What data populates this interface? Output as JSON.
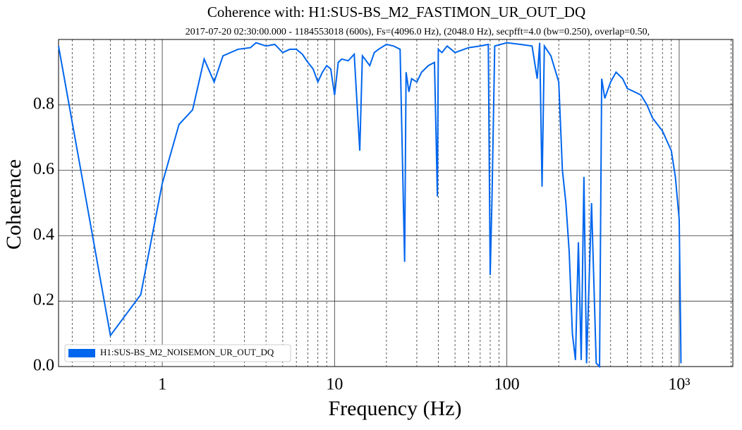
{
  "chart_data": {
    "type": "line",
    "title": "Coherence with: H1:SUS-BS_M2_FASTIMON_UR_OUT_DQ",
    "subtitle": "2017-07-20 02:30:00.000 - 1184553018 (600s), Fs=(4096.0 Hz), (2048.0 Hz), secpfft=4.0 (bw=0.250), overlap=0.50,",
    "xlabel": "Frequency (Hz)",
    "ylabel": "Coherence",
    "xscale": "log",
    "grid": true,
    "legend": "lower left",
    "xlim": [
      0.25,
      2048
    ],
    "ylim": [
      0,
      1
    ],
    "xticks": [
      1,
      10,
      100,
      {
        "value": 1000,
        "label": "10³"
      }
    ],
    "xminorticks": [
      0.3,
      0.4,
      0.5,
      0.6,
      0.7,
      0.8,
      0.9,
      2,
      3,
      4,
      5,
      6,
      7,
      8,
      9,
      20,
      30,
      40,
      50,
      60,
      70,
      80,
      90,
      200,
      300,
      400,
      500,
      600,
      700,
      800,
      900,
      2000
    ],
    "yticks": [
      {
        "value": 0,
        "label": "0.0"
      },
      0.2,
      0.4,
      0.6,
      0.8
    ],
    "x": [
      0.25,
      0.5,
      0.75,
      1.0,
      1.25,
      1.5,
      1.75,
      2.0,
      2.25,
      2.75,
      3.25,
      3.5,
      4,
      4.5,
      5,
      5.5,
      6,
      6.5,
      7,
      7.5,
      8,
      8.5,
      9,
      9.5,
      10,
      10.5,
      11,
      12,
      13,
      14,
      14.5,
      15,
      16,
      17,
      18,
      20,
      22,
      24,
      25.5,
      26,
      27,
      28,
      30,
      32,
      35,
      38,
      39.5,
      40,
      42,
      45,
      50,
      60,
      70,
      78,
      80,
      82,
      85,
      100,
      120,
      140,
      150,
      155,
      160,
      165,
      180,
      200,
      210,
      220,
      230,
      240,
      250,
      260,
      270,
      280,
      290,
      310,
      330,
      345,
      355,
      370,
      400,
      430,
      470,
      500,
      550,
      600,
      650,
      700,
      800,
      900,
      950,
      1000,
      1020,
      1024
    ],
    "series": [
      {
        "name": "H1:SUS-BS_M2_NOISEMON_UR_OUT_DQ",
        "color": "#0066ee",
        "values": [
          0.98,
          0.095,
          0.22,
          0.56,
          0.74,
          0.785,
          0.94,
          0.87,
          0.95,
          0.97,
          0.975,
          0.99,
          0.98,
          0.985,
          0.96,
          0.97,
          0.97,
          0.955,
          0.93,
          0.91,
          0.87,
          0.9,
          0.92,
          0.91,
          0.83,
          0.93,
          0.94,
          0.935,
          0.955,
          0.66,
          0.95,
          0.94,
          0.92,
          0.96,
          0.97,
          0.985,
          0.98,
          0.97,
          0.32,
          0.9,
          0.84,
          0.88,
          0.87,
          0.9,
          0.92,
          0.93,
          0.52,
          0.97,
          0.96,
          0.98,
          0.96,
          0.975,
          0.98,
          0.985,
          0.28,
          0.52,
          0.98,
          0.99,
          0.985,
          0.98,
          0.88,
          0.99,
          0.55,
          0.98,
          0.95,
          0.87,
          0.6,
          0.5,
          0.35,
          0.1,
          0.02,
          0.38,
          0.02,
          0.58,
          0.01,
          0.5,
          0.01,
          0.0,
          0.88,
          0.82,
          0.87,
          0.9,
          0.88,
          0.85,
          0.84,
          0.83,
          0.8,
          0.76,
          0.72,
          0.66,
          0.58,
          0.45,
          0.1,
          0.01
        ]
      }
    ]
  }
}
